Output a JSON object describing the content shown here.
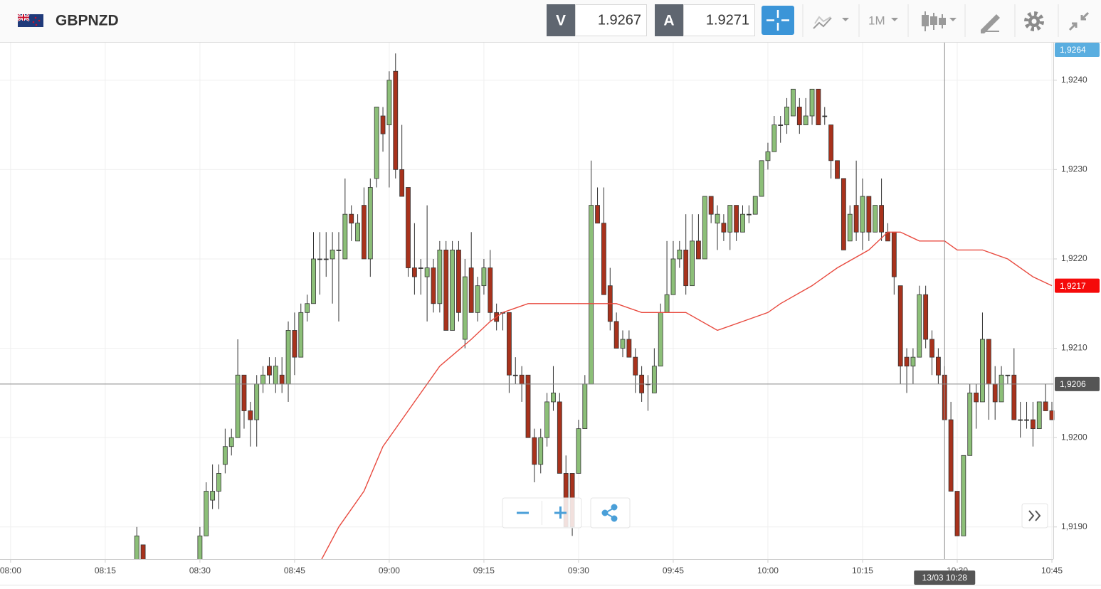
{
  "toolbar": {
    "symbol": "GBPNZD",
    "bid": {
      "label": "V",
      "price": 1.9267
    },
    "ask": {
      "label": "A",
      "price": 1.9271
    },
    "timeframe": "1M"
  },
  "chart_data": {
    "type": "candlestick",
    "up_color": "#8cbf78",
    "down_color": "#a8321c",
    "x": [
      "08:20",
      "08:21",
      "08:30",
      "08:31",
      "08:32",
      "08:33",
      "08:34",
      "08:35",
      "08:36",
      "08:37",
      "08:38",
      "08:39",
      "08:40",
      "08:41",
      "08:42",
      "08:43",
      "08:44",
      "08:45",
      "08:46",
      "08:47",
      "08:48",
      "08:49",
      "08:50",
      "08:51",
      "08:52",
      "08:53",
      "08:54",
      "08:55",
      "08:56",
      "08:57",
      "08:58",
      "08:59",
      "09:00",
      "09:01",
      "09:02",
      "09:03",
      "09:04",
      "09:05",
      "09:06",
      "09:07",
      "09:08",
      "09:09",
      "09:10",
      "09:11",
      "09:12",
      "09:13",
      "09:14",
      "09:15",
      "09:16",
      "09:17",
      "09:18",
      "09:19",
      "09:20",
      "09:21",
      "09:22",
      "09:23",
      "09:24",
      "09:25",
      "09:26",
      "09:27",
      "09:28",
      "09:29",
      "09:30",
      "09:31",
      "09:32",
      "09:33",
      "09:34",
      "09:35",
      "09:36",
      "09:37",
      "09:38",
      "09:39",
      "09:40",
      "09:41",
      "09:42",
      "09:43",
      "09:44",
      "09:45",
      "09:46",
      "09:47",
      "09:48",
      "09:49",
      "09:50",
      "09:51",
      "09:52",
      "09:53",
      "09:54",
      "09:55",
      "09:56",
      "09:57",
      "09:58",
      "09:59",
      "10:00",
      "10:01",
      "10:02",
      "10:03",
      "10:04",
      "10:05",
      "10:06",
      "10:07",
      "10:08",
      "10:09",
      "10:10",
      "10:11",
      "10:12",
      "10:13",
      "10:14",
      "10:15",
      "10:16",
      "10:17",
      "10:18",
      "10:19",
      "10:20",
      "10:21",
      "10:22",
      "10:23",
      "10:24",
      "10:25",
      "10:26",
      "10:27",
      "10:28",
      "10:29",
      "10:30",
      "10:31",
      "10:32",
      "10:33",
      "10:34",
      "10:35",
      "10:36",
      "10:37",
      "10:38",
      "10:39",
      "10:40",
      "10:41",
      "10:42",
      "10:43",
      "10:44",
      "10:45"
    ],
    "ohlc": [
      [
        1.9186,
        1.919,
        1.9186,
        1.9189
      ],
      [
        1.9188,
        1.9188,
        1.9186,
        1.9186
      ],
      [
        1.9186,
        1.919,
        1.9186,
        1.9189
      ],
      [
        1.9189,
        1.9195,
        1.9189,
        1.9194
      ],
      [
        1.9193,
        1.9197,
        1.9192,
        1.9194
      ],
      [
        1.9194,
        1.9197,
        1.9192,
        1.9196
      ],
      [
        1.9197,
        1.9201,
        1.9196,
        1.9199
      ],
      [
        1.9199,
        1.9201,
        1.9198,
        1.92
      ],
      [
        1.92,
        1.9211,
        1.92,
        1.9207
      ],
      [
        1.9207,
        1.9207,
        1.9201,
        1.9203
      ],
      [
        1.9203,
        1.9204,
        1.9199,
        1.9202
      ],
      [
        1.9202,
        1.9207,
        1.9199,
        1.9206
      ],
      [
        1.9206,
        1.9208,
        1.9205,
        1.9207
      ],
      [
        1.9208,
        1.9209,
        1.9206,
        1.9207
      ],
      [
        1.9206,
        1.9209,
        1.9205,
        1.9208
      ],
      [
        1.9207,
        1.9209,
        1.9205,
        1.9206
      ],
      [
        1.9206,
        1.9213,
        1.9204,
        1.9212
      ],
      [
        1.9212,
        1.9214,
        1.9207,
        1.9209
      ],
      [
        1.9209,
        1.9215,
        1.9209,
        1.9214
      ],
      [
        1.9214,
        1.9216,
        1.9213,
        1.9215
      ],
      [
        1.9215,
        1.9223,
        1.9215,
        1.922
      ],
      [
        1.922,
        1.9223,
        1.9216,
        1.922
      ],
      [
        1.922,
        1.9223,
        1.9218,
        1.922
      ],
      [
        1.922,
        1.9223,
        1.9215,
        1.9221
      ],
      [
        1.9221,
        1.9223,
        1.9213,
        1.9221
      ],
      [
        1.922,
        1.9229,
        1.922,
        1.9225
      ],
      [
        1.9225,
        1.9226,
        1.9222,
        1.9224
      ],
      [
        1.9222,
        1.9225,
        1.9222,
        1.9224
      ],
      [
        1.9226,
        1.9228,
        1.922,
        1.922
      ],
      [
        1.922,
        1.9229,
        1.9218,
        1.9228
      ],
      [
        1.9229,
        1.9237,
        1.9228,
        1.9237
      ],
      [
        1.9236,
        1.9237,
        1.9232,
        1.9234
      ],
      [
        1.9235,
        1.9241,
        1.9228,
        1.924
      ],
      [
        1.9241,
        1.9243,
        1.9229,
        1.923
      ],
      [
        1.923,
        1.9235,
        1.9227,
        1.9227
      ],
      [
        1.9228,
        1.9228,
        1.9218,
        1.9219
      ],
      [
        1.9219,
        1.9224,
        1.9216,
        1.9218
      ],
      [
        1.9219,
        1.922,
        1.9216,
        1.9219
      ],
      [
        1.9218,
        1.9226,
        1.9213,
        1.9219
      ],
      [
        1.9219,
        1.922,
        1.9214,
        1.9215
      ],
      [
        1.9215,
        1.9222,
        1.9214,
        1.9221
      ],
      [
        1.9221,
        1.9222,
        1.9212,
        1.9212
      ],
      [
        1.9212,
        1.9222,
        1.9212,
        1.9221
      ],
      [
        1.9221,
        1.9222,
        1.9213,
        1.9214
      ],
      [
        1.9211,
        1.922,
        1.921,
        1.9218
      ],
      [
        1.9219,
        1.9223,
        1.9214,
        1.9214
      ],
      [
        1.9214,
        1.9218,
        1.9213,
        1.9217
      ],
      [
        1.9217,
        1.922,
        1.9216,
        1.9219
      ],
      [
        1.9219,
        1.9221,
        1.9213,
        1.9214
      ],
      [
        1.9214,
        1.9215,
        1.9212,
        1.9213
      ],
      [
        1.9214,
        1.9214,
        1.9212,
        1.9214
      ],
      [
        1.9214,
        1.9214,
        1.9205,
        1.9207
      ],
      [
        1.9207,
        1.9209,
        1.9206,
        1.9207
      ],
      [
        1.9207,
        1.9208,
        1.9204,
        1.9206
      ],
      [
        1.9207,
        1.9207,
        1.92,
        1.92
      ],
      [
        1.92,
        1.9201,
        1.9195,
        1.9197
      ],
      [
        1.9197,
        1.9201,
        1.9196,
        1.92
      ],
      [
        1.92,
        1.9205,
        1.9199,
        1.9204
      ],
      [
        1.9204,
        1.9208,
        1.9203,
        1.9205
      ],
      [
        1.9204,
        1.9205,
        1.9196,
        1.9196
      ],
      [
        1.9196,
        1.9198,
        1.919,
        1.919
      ],
      [
        1.9196,
        1.9196,
        1.9189,
        1.919
      ],
      [
        1.9196,
        1.9202,
        1.9196,
        1.9201
      ],
      [
        1.9201,
        1.9207,
        1.9201,
        1.9206
      ],
      [
        1.9206,
        1.9231,
        1.9206,
        1.9226
      ],
      [
        1.9226,
        1.9228,
        1.9224,
        1.9224
      ],
      [
        1.9224,
        1.9228,
        1.9216,
        1.9216
      ],
      [
        1.9217,
        1.9219,
        1.9212,
        1.9213
      ],
      [
        1.9213,
        1.9214,
        1.921,
        1.921
      ],
      [
        1.921,
        1.9212,
        1.9209,
        1.9211
      ],
      [
        1.9211,
        1.9212,
        1.9209,
        1.9209
      ],
      [
        1.9209,
        1.921,
        1.9205,
        1.9207
      ],
      [
        1.9207,
        1.9208,
        1.9204,
        1.9205
      ],
      [
        1.9206,
        1.9207,
        1.9203,
        1.9206
      ],
      [
        1.9205,
        1.921,
        1.9205,
        1.9208
      ],
      [
        1.9208,
        1.9215,
        1.9208,
        1.9214
      ],
      [
        1.9214,
        1.9222,
        1.9214,
        1.9216
      ],
      [
        1.9216,
        1.9222,
        1.9216,
        1.922
      ],
      [
        1.922,
        1.9222,
        1.9219,
        1.9221
      ],
      [
        1.9221,
        1.9225,
        1.9216,
        1.9217
      ],
      [
        1.9217,
        1.9225,
        1.9217,
        1.9222
      ],
      [
        1.9222,
        1.9225,
        1.922,
        1.922
      ],
      [
        1.922,
        1.9227,
        1.922,
        1.9227
      ],
      [
        1.9227,
        1.9227,
        1.9224,
        1.9225
      ],
      [
        1.9224,
        1.9226,
        1.9221,
        1.9225
      ],
      [
        1.9224,
        1.9225,
        1.9222,
        1.9223
      ],
      [
        1.9223,
        1.9226,
        1.9221,
        1.9226
      ],
      [
        1.9226,
        1.9226,
        1.9222,
        1.9223
      ],
      [
        1.9223,
        1.9226,
        1.9223,
        1.9225
      ],
      [
        1.9225,
        1.9226,
        1.9224,
        1.9225
      ],
      [
        1.9225,
        1.9227,
        1.9225,
        1.9227
      ],
      [
        1.9227,
        1.9231,
        1.9227,
        1.9231
      ],
      [
        1.9231,
        1.9233,
        1.923,
        1.9232
      ],
      [
        1.9232,
        1.9236,
        1.9232,
        1.9235
      ],
      [
        1.9235,
        1.9236,
        1.9233,
        1.9235
      ],
      [
        1.9235,
        1.9238,
        1.9234,
        1.9237
      ],
      [
        1.9236,
        1.9239,
        1.9236,
        1.9239
      ],
      [
        1.9237,
        1.9238,
        1.9234,
        1.9235
      ],
      [
        1.9235,
        1.9238,
        1.9235,
        1.9236
      ],
      [
        1.9236,
        1.9239,
        1.9235,
        1.9239
      ],
      [
        1.9239,
        1.9239,
        1.9235,
        1.9235
      ],
      [
        1.9236,
        1.9237,
        1.9235,
        1.9236
      ],
      [
        1.9235,
        1.9235,
        1.9229,
        1.9231
      ],
      [
        1.9231,
        1.9231,
        1.9229,
        1.9229
      ],
      [
        1.9229,
        1.9229,
        1.9221,
        1.9221
      ],
      [
        1.9222,
        1.9226,
        1.9222,
        1.9225
      ],
      [
        1.9226,
        1.9231,
        1.9222,
        1.9223
      ],
      [
        1.9223,
        1.9229,
        1.9221,
        1.9227
      ],
      [
        1.9227,
        1.9227,
        1.9222,
        1.9223
      ],
      [
        1.9223,
        1.9226,
        1.9223,
        1.9226
      ],
      [
        1.9226,
        1.9229,
        1.9222,
        1.9223
      ],
      [
        1.9223,
        1.9224,
        1.9222,
        1.9222
      ],
      [
        1.9223,
        1.9223,
        1.9216,
        1.9218
      ],
      [
        1.9217,
        1.9217,
        1.9206,
        1.9208
      ],
      [
        1.9209,
        1.921,
        1.9205,
        1.9208
      ],
      [
        1.9208,
        1.921,
        1.9206,
        1.9209
      ],
      [
        1.9209,
        1.9217,
        1.9209,
        1.9216
      ],
      [
        1.9216,
        1.9217,
        1.921,
        1.9211
      ],
      [
        1.9211,
        1.9212,
        1.9207,
        1.9209
      ],
      [
        1.9209,
        1.921,
        1.9206,
        1.9207
      ],
      [
        1.9207,
        1.9208,
        1.9202,
        1.9202
      ],
      [
        1.9202,
        1.9204,
        1.9194,
        1.9194
      ],
      [
        1.9194,
        1.9194,
        1.9189,
        1.9189
      ],
      [
        1.9189,
        1.9198,
        1.9189,
        1.9198
      ],
      [
        1.9198,
        1.9206,
        1.9198,
        1.9205
      ],
      [
        1.9205,
        1.9206,
        1.9201,
        1.9204
      ],
      [
        1.9204,
        1.9214,
        1.9204,
        1.9211
      ],
      [
        1.9211,
        1.9211,
        1.9202,
        1.9206
      ],
      [
        1.9206,
        1.9208,
        1.9202,
        1.9204
      ],
      [
        1.9204,
        1.9208,
        1.9204,
        1.9207
      ],
      [
        1.9207,
        1.9207,
        1.9206,
        1.9207
      ],
      [
        1.9207,
        1.921,
        1.9202,
        1.9202
      ],
      [
        1.9202,
        1.9204,
        1.92,
        1.9202
      ],
      [
        1.9202,
        1.9204,
        1.9201,
        1.9202
      ],
      [
        1.9202,
        1.9204,
        1.9199,
        1.9201
      ],
      [
        1.9201,
        1.9204,
        1.9201,
        1.9204
      ],
      [
        1.9204,
        1.9206,
        1.9203,
        1.9203
      ],
      [
        1.9203,
        1.9204,
        1.9202,
        1.9202
      ]
    ],
    "line": {
      "color": "#e84a3f",
      "x": [
        "08:49",
        "08:52",
        "08:56",
        "08:59",
        "09:01",
        "09:04",
        "09:08",
        "09:13",
        "09:16",
        "09:18",
        "09:22",
        "09:26",
        "09:29",
        "09:31",
        "09:33",
        "09:36",
        "09:40",
        "09:44",
        "09:47",
        "09:52",
        "09:56",
        "10:00",
        "10:02",
        "10:07",
        "10:11",
        "10:16",
        "10:19",
        "10:21",
        "10:24",
        "10:28",
        "10:30",
        "10:34",
        "10:38",
        "10:42",
        "10:45"
      ],
      "values": [
        1.9186,
        1.919,
        1.9194,
        1.9199,
        1.9201,
        1.9204,
        1.9208,
        1.9211,
        1.9213,
        1.9214,
        1.9215,
        1.9215,
        1.9215,
        1.9215,
        1.9215,
        1.9215,
        1.9214,
        1.9214,
        1.9214,
        1.9212,
        1.9213,
        1.9214,
        1.9215,
        1.9217,
        1.9219,
        1.9221,
        1.9223,
        1.9223,
        1.9222,
        1.9222,
        1.9221,
        1.9221,
        1.922,
        1.9218,
        1.9217
      ]
    },
    "xlim": [
      "07:59",
      "10:45"
    ],
    "xticks": [
      "08:00",
      "08:15",
      "08:30",
      "08:45",
      "09:00",
      "09:15",
      "09:30",
      "09:45",
      "10:00",
      "10:15",
      "10:30",
      "10:45"
    ],
    "ylim": [
      1.91864,
      1.92442
    ],
    "yticks": [
      {
        "value": 1.919,
        "label": "1,9190"
      },
      {
        "value": 1.92,
        "label": "1,9200"
      },
      {
        "value": 1.921,
        "label": "1,9210"
      },
      {
        "value": 1.922,
        "label": "1,9220"
      },
      {
        "value": 1.923,
        "label": "1,9230"
      },
      {
        "value": 1.924,
        "label": "1,9240"
      }
    ],
    "grid": true,
    "last_price": {
      "value": 1.9264,
      "label": "1,9264",
      "color": "#5aaee0"
    },
    "line_price": {
      "value": 1.9217,
      "label": "1,9217",
      "color": "#f50a0a"
    },
    "crosshair": {
      "value": 1.9206,
      "label": "1,9206",
      "time_label": "13/03 10:28",
      "color": "#555555"
    }
  }
}
